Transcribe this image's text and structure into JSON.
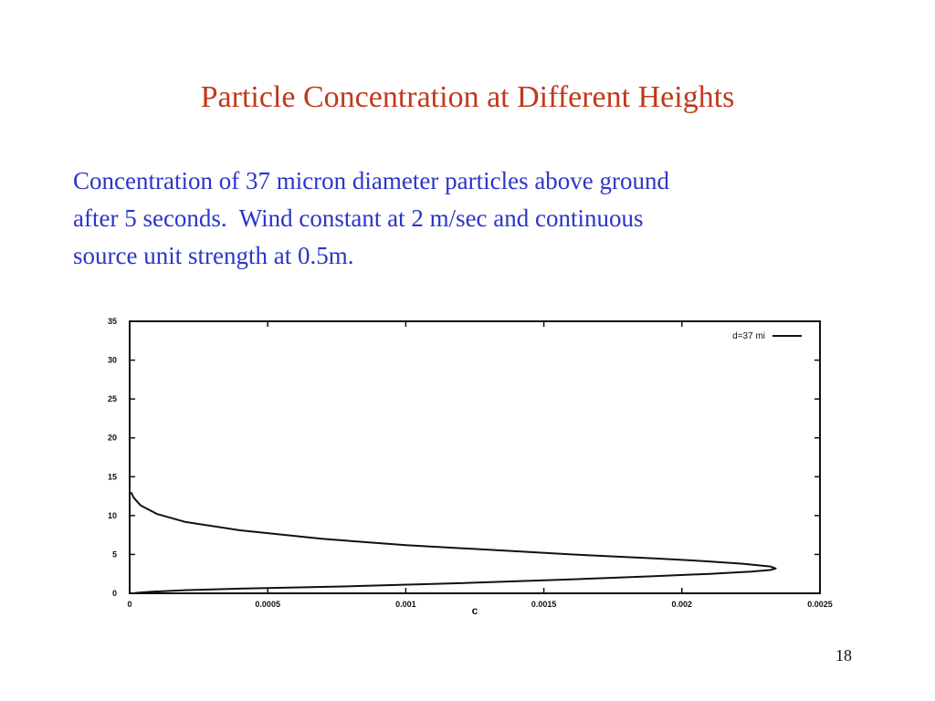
{
  "slide": {
    "title": "Particle Concentration at Different Heights",
    "body_lines": [
      "Concentration of 37 micron diameter particles above ground",
      "after 5 seconds.  Wind constant at 2 m/sec and continuous",
      "source unit strength at 0.5m."
    ],
    "page_number": "18"
  },
  "chart_data": {
    "type": "line",
    "xlabel": "c",
    "ylabel": "",
    "xlim": [
      0,
      0.0025
    ],
    "ylim": [
      0,
      35
    ],
    "x_ticks": [
      0,
      0.0005,
      0.001,
      0.0015,
      0.002,
      0.0025
    ],
    "x_tick_labels": [
      "0",
      "0.0005",
      "0.001",
      "0.0015",
      "0.002",
      "0.0025"
    ],
    "y_ticks": [
      0,
      5,
      10,
      15,
      20,
      25,
      30,
      35
    ],
    "y_tick_labels": [
      "0",
      "5",
      "10",
      "15",
      "20",
      "25",
      "30",
      "35"
    ],
    "grid": false,
    "legend": "top-right",
    "series": [
      {
        "name": "d=37 mi",
        "color": "#111111",
        "x": [
          2e-05,
          8e-05,
          0.0002,
          0.0004,
          0.0008,
          0.0012,
          0.0016,
          0.0019,
          0.0021,
          0.00225,
          0.00232,
          0.00234,
          0.00232,
          0.00222,
          0.00208,
          0.0019,
          0.0016,
          0.0013,
          0.001,
          0.0007,
          0.0004,
          0.0002,
          0.0001,
          4e-05,
          1.5e-05,
          5e-06
        ],
        "y": [
          0.05,
          0.2,
          0.4,
          0.6,
          0.9,
          1.3,
          1.8,
          2.2,
          2.5,
          2.8,
          3.0,
          3.2,
          3.45,
          3.8,
          4.15,
          4.5,
          5.0,
          5.6,
          6.2,
          7.0,
          8.1,
          9.2,
          10.2,
          11.3,
          12.3,
          13.0
        ]
      }
    ]
  }
}
